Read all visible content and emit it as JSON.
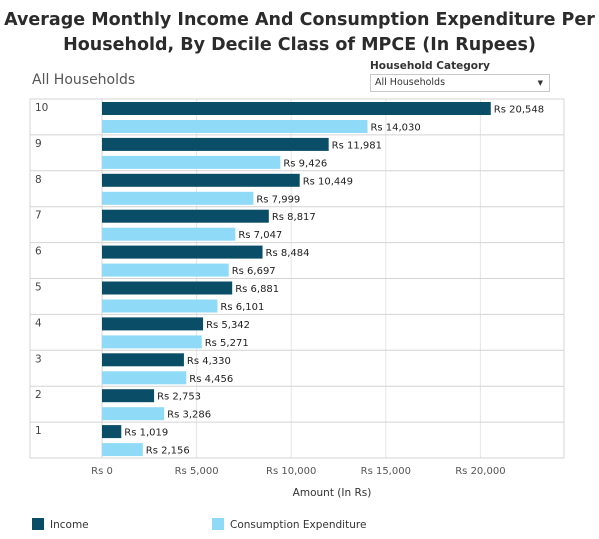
{
  "title_line1": "Average Monthly Income And Consumption Expenditure Per",
  "title_line2": "Household, By Decile Class of MPCE (In Rupees)",
  "subtitle": "All Households",
  "filter": {
    "label": "Household Category",
    "selected": "All Households",
    "caret": "▼"
  },
  "colors": {
    "income": "#0a4d66",
    "consumption": "#8fdbf7",
    "gridline": "#e6e6e6",
    "border": "#d4d4d4"
  },
  "chart_data": {
    "type": "bar",
    "orientation": "horizontal",
    "title": "Average Monthly Income And Consumption Expenditure Per Household, By Decile Class of MPCE (In Rupees)",
    "xlabel": "Amount (In Rs)",
    "ylabel": "",
    "xlim": [
      0,
      25000
    ],
    "grid": true,
    "legend_position": "bottom",
    "categories": [
      "10",
      "9",
      "8",
      "7",
      "6",
      "5",
      "4",
      "3",
      "2",
      "1"
    ],
    "series": [
      {
        "name": "Income",
        "labels": [
          "Rs 20,548",
          "Rs 11,981",
          "Rs 10,449",
          "Rs 8,817",
          "Rs 8,484",
          "Rs 6,881",
          "Rs 5,342",
          "Rs 4,330",
          "Rs 2,753",
          "Rs 1,019"
        ],
        "values": [
          20548,
          11981,
          10449,
          8817,
          8484,
          6881,
          5342,
          4330,
          2753,
          1019
        ]
      },
      {
        "name": "Consumption Expenditure",
        "labels": [
          "Rs 14,030",
          "Rs 9,426",
          "Rs 7,999",
          "Rs 7,047",
          "Rs 6,697",
          "Rs 6,101",
          "Rs 5,271",
          "Rs 4,456",
          "Rs 3,286",
          "Rs 2,156"
        ],
        "values": [
          14030,
          9426,
          7999,
          7047,
          6697,
          6101,
          5271,
          4456,
          3286,
          2156
        ]
      }
    ],
    "ticks": [
      {
        "value": 0,
        "label": "Rs 0"
      },
      {
        "value": 5000,
        "label": "Rs 5,000"
      },
      {
        "value": 10000,
        "label": "Rs 10,000"
      },
      {
        "value": 15000,
        "label": "Rs 15,000"
      },
      {
        "value": 20000,
        "label": "Rs 20,000"
      }
    ]
  },
  "legend": {
    "income_label": "Income",
    "consumption_label": "Consumption Expenditure"
  }
}
